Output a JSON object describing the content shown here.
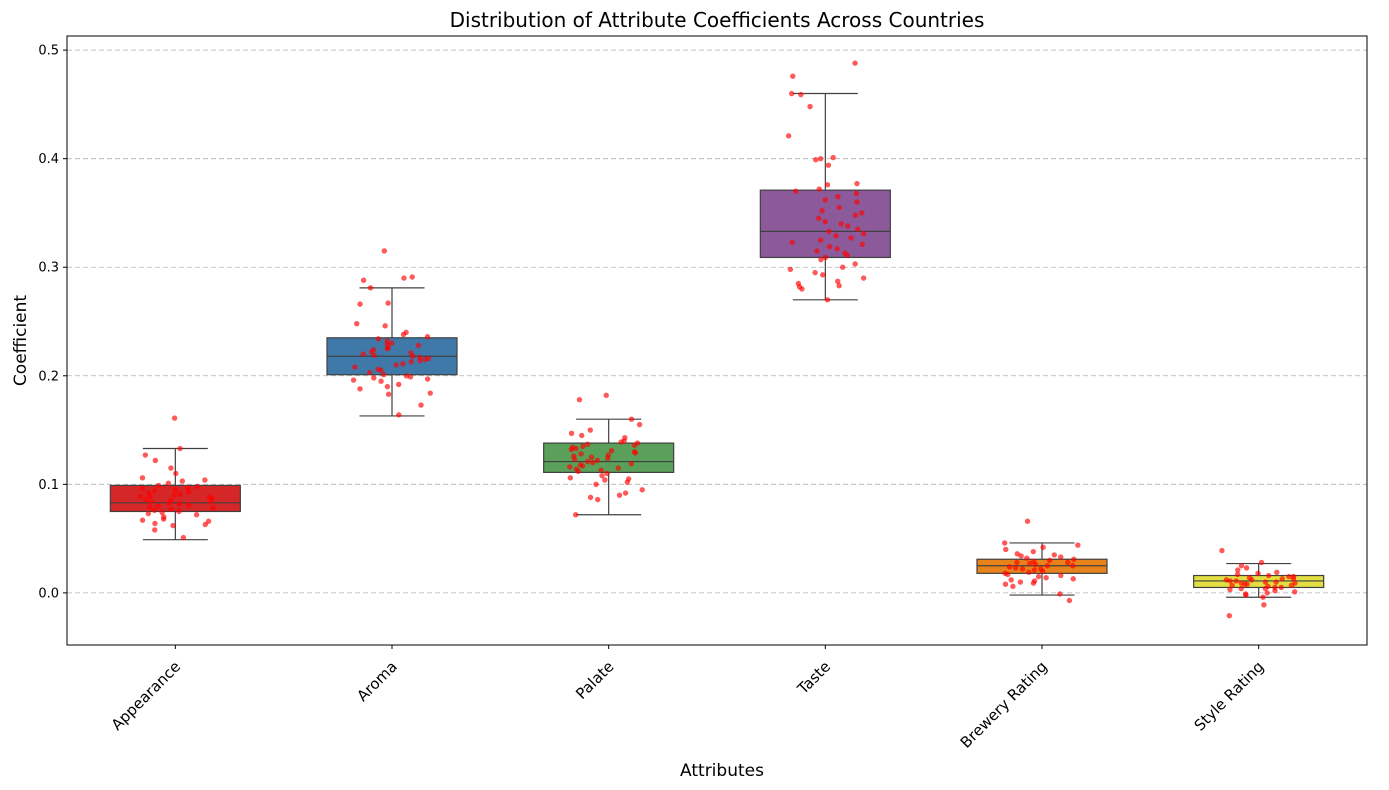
{
  "chart_data": {
    "type": "boxplot",
    "title": "Distribution of Attribute Coefficients Across Countries",
    "xlabel": "Attributes",
    "ylabel": "Coefficient",
    "ylim": [
      -0.048,
      0.513
    ],
    "yticks": [
      0.0,
      0.1,
      0.2,
      0.3,
      0.4,
      0.5
    ],
    "ytick_labels": [
      "0.0",
      "0.1",
      "0.2",
      "0.3",
      "0.4",
      "0.5"
    ],
    "grid": "y-dashed",
    "point_color": "#ff0000",
    "series": [
      {
        "name": "Appearance",
        "color": "#d62728",
        "whisker_low": 0.049,
        "q1": 0.075,
        "median": 0.083,
        "q3": 0.099,
        "whisker_high": 0.133,
        "points": [
          0.161,
          0.133,
          0.127,
          0.122,
          0.115,
          0.11,
          0.106,
          0.104,
          0.103,
          0.101,
          0.099,
          0.098,
          0.097,
          0.096,
          0.095,
          0.094,
          0.093,
          0.092,
          0.091,
          0.09,
          0.089,
          0.089,
          0.088,
          0.087,
          0.086,
          0.085,
          0.084,
          0.084,
          0.083,
          0.082,
          0.081,
          0.08,
          0.079,
          0.078,
          0.077,
          0.076,
          0.075,
          0.074,
          0.073,
          0.072,
          0.07,
          0.068,
          0.067,
          0.066,
          0.064,
          0.063,
          0.062,
          0.058,
          0.051
        ]
      },
      {
        "name": "Aroma",
        "color": "#3f79aa",
        "whisker_low": 0.163,
        "q1": 0.201,
        "median": 0.218,
        "q3": 0.235,
        "whisker_high": 0.281,
        "points": [
          0.315,
          0.291,
          0.29,
          0.288,
          0.281,
          0.267,
          0.266,
          0.248,
          0.246,
          0.24,
          0.238,
          0.236,
          0.234,
          0.232,
          0.23,
          0.229,
          0.228,
          0.226,
          0.225,
          0.224,
          0.222,
          0.221,
          0.22,
          0.219,
          0.218,
          0.217,
          0.216,
          0.215,
          0.214,
          0.213,
          0.211,
          0.21,
          0.208,
          0.206,
          0.205,
          0.203,
          0.201,
          0.2,
          0.199,
          0.198,
          0.197,
          0.196,
          0.195,
          0.192,
          0.19,
          0.188,
          0.184,
          0.183,
          0.173,
          0.164
        ]
      },
      {
        "name": "Palate",
        "color": "#5aa05a",
        "whisker_low": 0.072,
        "q1": 0.111,
        "median": 0.121,
        "q3": 0.138,
        "whisker_high": 0.16,
        "points": [
          0.182,
          0.178,
          0.16,
          0.155,
          0.15,
          0.147,
          0.145,
          0.143,
          0.14,
          0.139,
          0.138,
          0.137,
          0.136,
          0.135,
          0.134,
          0.133,
          0.132,
          0.131,
          0.13,
          0.129,
          0.128,
          0.127,
          0.126,
          0.125,
          0.124,
          0.123,
          0.122,
          0.121,
          0.12,
          0.119,
          0.118,
          0.117,
          0.116,
          0.115,
          0.114,
          0.113,
          0.112,
          0.11,
          0.108,
          0.106,
          0.105,
          0.104,
          0.102,
          0.1,
          0.095,
          0.092,
          0.09,
          0.088,
          0.086,
          0.072
        ]
      },
      {
        "name": "Taste",
        "color": "#8c5a9a",
        "whisker_low": 0.27,
        "q1": 0.309,
        "median": 0.333,
        "q3": 0.371,
        "whisker_high": 0.46,
        "points": [
          0.488,
          0.476,
          0.46,
          0.459,
          0.448,
          0.421,
          0.401,
          0.4,
          0.399,
          0.394,
          0.377,
          0.376,
          0.372,
          0.37,
          0.368,
          0.365,
          0.362,
          0.36,
          0.355,
          0.352,
          0.35,
          0.348,
          0.345,
          0.342,
          0.34,
          0.338,
          0.335,
          0.333,
          0.331,
          0.329,
          0.327,
          0.325,
          0.323,
          0.321,
          0.319,
          0.317,
          0.315,
          0.313,
          0.311,
          0.309,
          0.307,
          0.303,
          0.3,
          0.298,
          0.295,
          0.293,
          0.29,
          0.287,
          0.285,
          0.283,
          0.282,
          0.28,
          0.27
        ]
      },
      {
        "name": "Brewery Rating",
        "color": "#e8831c",
        "whisker_low": -0.002,
        "q1": 0.018,
        "median": 0.025,
        "q3": 0.031,
        "whisker_high": 0.046,
        "points": [
          0.066,
          0.046,
          0.044,
          0.042,
          0.04,
          0.038,
          0.036,
          0.035,
          0.034,
          0.033,
          0.032,
          0.031,
          0.03,
          0.029,
          0.028,
          0.028,
          0.027,
          0.026,
          0.025,
          0.025,
          0.024,
          0.023,
          0.022,
          0.022,
          0.021,
          0.02,
          0.019,
          0.018,
          0.017,
          0.016,
          0.015,
          0.014,
          0.013,
          0.012,
          0.011,
          0.01,
          0.009,
          0.008,
          0.006,
          -0.001,
          -0.007
        ]
      },
      {
        "name": "Style Rating",
        "color": "#e3df42",
        "whisker_low": -0.004,
        "q1": 0.005,
        "median": 0.011,
        "q3": 0.016,
        "whisker_high": 0.027,
        "points": [
          0.039,
          0.028,
          0.025,
          0.023,
          0.021,
          0.019,
          0.018,
          0.017,
          0.016,
          0.015,
          0.015,
          0.014,
          0.013,
          0.013,
          0.012,
          0.012,
          0.011,
          0.011,
          0.01,
          0.01,
          0.009,
          0.009,
          0.008,
          0.008,
          0.007,
          0.007,
          0.006,
          0.005,
          0.005,
          0.004,
          0.004,
          0.003,
          0.002,
          0.001,
          0.0,
          -0.001,
          -0.002,
          -0.004,
          -0.011,
          -0.021
        ]
      }
    ]
  }
}
